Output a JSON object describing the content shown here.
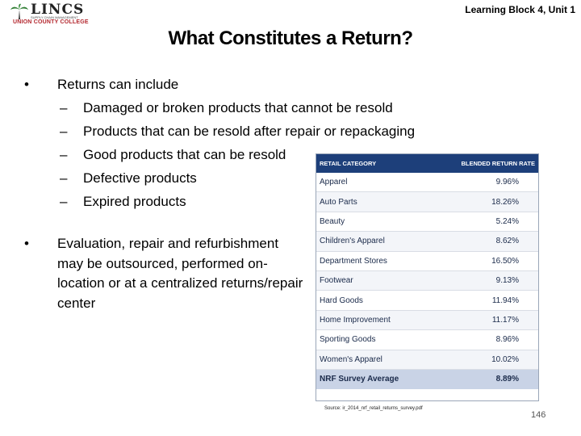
{
  "logo": {
    "name": "LINCS",
    "tagline": "SUPPLY CHAIN MANAGEMENT",
    "college": "UNION COUNTY COLLEGE"
  },
  "header": {
    "course_label": "Learning Block 4, Unit 1"
  },
  "slide": {
    "title": "What Constitutes a Return?",
    "bullet1": {
      "text": "Returns can include",
      "sub_items": [
        "Damaged or broken products that cannot be resold",
        "Products that can be resold after repair or repackaging",
        "Good products that can be resold",
        "Defective products",
        "Expired products"
      ]
    },
    "bullet2": {
      "text": "Evaluation, repair and refurbishment may be outsourced, performed on-location or at a centralized returns/repair center"
    },
    "bullet_marker": "•",
    "dash_marker": "–"
  },
  "return_table": {
    "col_category": "RETAIL CATEGORY",
    "col_rate": "BLENDED RETURN RATE",
    "rows": [
      {
        "category": "Apparel",
        "rate": "9.96%"
      },
      {
        "category": "Auto Parts",
        "rate": "18.26%"
      },
      {
        "category": "Beauty",
        "rate": "5.24%"
      },
      {
        "category": "Children's Apparel",
        "rate": "8.62%"
      },
      {
        "category": "Department Stores",
        "rate": "16.50%"
      },
      {
        "category": "Footwear",
        "rate": "9.13%"
      },
      {
        "category": "Hard Goods",
        "rate": "11.94%"
      },
      {
        "category": "Home Improvement",
        "rate": "11.17%"
      },
      {
        "category": "Sporting Goods",
        "rate": "8.96%"
      },
      {
        "category": "Women's Apparel",
        "rate": "10.02%"
      }
    ],
    "footer": {
      "category": "NRF Survey Average",
      "rate": "8.89%"
    }
  },
  "source": "Source: ir_2014_nrf_retail_returns_survey.pdf",
  "page_number": "146"
}
